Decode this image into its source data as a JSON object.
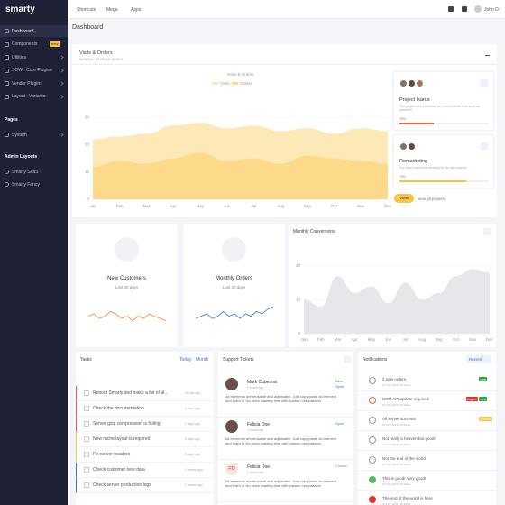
{
  "sidebar": {
    "logo": "smarty",
    "items": [
      "Dashboard",
      "Components",
      "Utilities",
      "SOW : Core Plugins",
      "Vendor Plugins",
      "Layout : Variants"
    ],
    "badge": "new",
    "pages_heading": "Pages",
    "pages_items": [
      "System"
    ],
    "admin_heading": "Admin Layouts",
    "admin_items": [
      "Smarty SaaS",
      "Smarty Fancy"
    ]
  },
  "topbar": {
    "links": [
      "Shortcuts",
      "Mega",
      "Apps"
    ],
    "user": "John D."
  },
  "page_title": "Dashboard",
  "visits": {
    "title": "Visits & Orders",
    "subtitle": "MONTHLY REVENUE IN 2019",
    "chart_data": {
      "type": "area",
      "title": "Visits & Orders",
      "categories": [
        "Jan",
        "Feb",
        "Mar",
        "Apr",
        "May",
        "Jun",
        "Jul",
        "Aug",
        "Sep",
        "Oct",
        "Nov",
        "Dec"
      ],
      "series": [
        {
          "name": "Visits",
          "color": "#fde9b8",
          "values": [
            22,
            23,
            24,
            27,
            28,
            26,
            27,
            25,
            26,
            24,
            26,
            25
          ]
        },
        {
          "name": "Orders",
          "color": "#fdd98a",
          "values": [
            12,
            14,
            13,
            15,
            17,
            14,
            15,
            13,
            16,
            15,
            14,
            13
          ]
        }
      ],
      "ylim": [
        0,
        35
      ],
      "yticks": [
        0,
        10,
        20,
        30
      ]
    }
  },
  "projects": [
    {
      "name": "Project Ikarus",
      "description": "The project has a timeline, we need to finish it as soon as possible!",
      "progress": 39,
      "progress_label": "39%",
      "color": "#f0643c"
    },
    {
      "name": "Remarketing",
      "description": "Our client wants remarketing for his two projects",
      "progress": 76,
      "progress_label": "76%",
      "color": "#f6c343"
    }
  ],
  "project_buttons": [
    "View",
    "view all projects"
  ],
  "stats": [
    {
      "title": "New Customers",
      "subtitle": "Last 30 days",
      "chart_data": {
        "type": "line",
        "color": "#f5852e",
        "ylim": [
          0,
          10
        ],
        "values": [
          4,
          5,
          3,
          4,
          6,
          5,
          3,
          4,
          2,
          4,
          3,
          5,
          4,
          3,
          2
        ]
      }
    },
    {
      "title": "Monthly Orders",
      "subtitle": "Last 30 days",
      "chart_data": {
        "type": "line",
        "color": "#3b6fd8",
        "ylim": [
          0,
          10
        ],
        "values": [
          3,
          4,
          5,
          3,
          4,
          6,
          4,
          5,
          3,
          5,
          4,
          6,
          5,
          7,
          8
        ]
      }
    }
  ],
  "conversions": {
    "title": "Monthly Conversions",
    "chart_data": {
      "type": "area",
      "categories": [
        "Jan",
        "Feb",
        "Mar",
        "Apr",
        "May",
        "Jun",
        "Jul",
        "Aug",
        "Sep",
        "Oct",
        "Nov",
        "Dec"
      ],
      "values": [
        10,
        8,
        17,
        12,
        14,
        9,
        15,
        10,
        12,
        17,
        19,
        18
      ],
      "color": "#e6e7ea",
      "ylim": [
        0,
        25
      ],
      "yticks": [
        0,
        10,
        20
      ]
    }
  },
  "tasks": {
    "title": "Tasks",
    "tabs": [
      "Today",
      "Month"
    ],
    "items": [
      {
        "text": "Reboot Smarty and make a list of al...",
        "time": "30 min ago"
      },
      {
        "text": "Check the documentation",
        "time": "2 days ago"
      },
      {
        "text": "Server gzip compression is failing",
        "time": "2 days ago"
      },
      {
        "text": "New ruche layout is required",
        "time": "3 days ago"
      },
      {
        "text": "Fix server headers",
        "time": "5 days ago"
      },
      {
        "text": "Check customer new data",
        "time": "2 weeks ago"
      },
      {
        "text": "Check server production logs",
        "time": "2 weeks ago"
      }
    ]
  },
  "tickets": {
    "title": "Support Tickets",
    "items": [
      {
        "name": "Mark Cuberina",
        "time": "2 hours ago",
        "status": "New",
        "status2": "Open",
        "text": "All elements are reusable and adjustable. Just copy/paste an element and that's it! No more wasting time with custom css classes!"
      },
      {
        "name": "Felicia Doe",
        "time": "2 hours ago",
        "status": "Open",
        "text": "All elements are reusable and adjustable. Just copy/paste an element and that's it! No more wasting time with custom css classes!"
      },
      {
        "name": "Felicia Doe",
        "initials": "FD",
        "time": "2 hours ago",
        "status": "Closed",
        "text": "All elements are reusable and adjustable. Just copy/paste an element and that's it! No more wasting time with custom css classes!"
      }
    ]
  },
  "notifications": {
    "title": "Notifications",
    "filter": "Recent",
    "items": [
      {
        "text": "2 new orders",
        "date": "Oct 23, 2019 / 10:23am",
        "badges": [
          "new"
        ]
      },
      {
        "text": "CRM API update required!",
        "date": "Oct 23, 2019 / 10:23am",
        "badges": [
          "urgent",
          "new"
        ]
      },
      {
        "text": "All server success!",
        "date": "Oct 23, 2019 / 10:23am",
        "badges": [
          "pending"
        ]
      },
      {
        "text": "Not really a heaven but good!",
        "date": "Oct 23, 2019 / 10:23am"
      },
      {
        "text": "Not the end of the world",
        "date": "Oct 23, 2019 / 10:23am"
      },
      {
        "text": "This is good! Very good!",
        "date": "Oct 23, 2019 / 10:23am"
      },
      {
        "text": "The end of the world is here",
        "date": "Oct 23, 2019 / 10:23am"
      }
    ]
  }
}
